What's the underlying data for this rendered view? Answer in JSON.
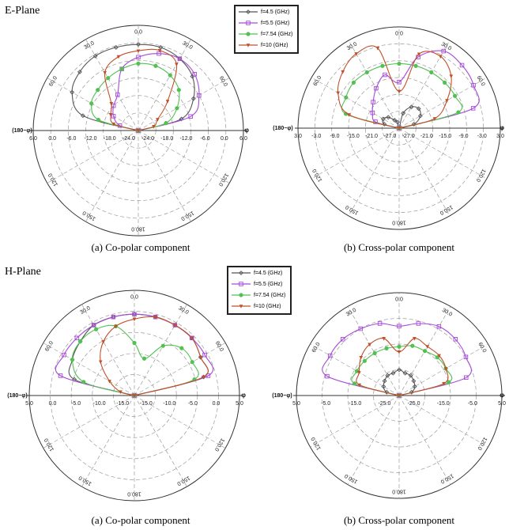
{
  "figure": {
    "e_plane_label": "E-Plane",
    "h_plane_label": "H-Plane",
    "captions": [
      "(a) Co-polar component",
      "(b) Cross-polar component",
      "(a) Co-polar component",
      "(b) Cross-polar component"
    ],
    "side_label_left": "(180−φ)",
    "side_label_right": "φ"
  },
  "legend": {
    "entries": [
      {
        "label": "f=4.5",
        "unit": "(GHz)",
        "color": "#555555",
        "marker": "diamond"
      },
      {
        "label": "f=5.5",
        "unit": "(GHz)",
        "color": "#a64ad8",
        "marker": "square"
      },
      {
        "label": "f=7.54",
        "unit": "(GHz)",
        "color": "#52c152",
        "marker": "circle"
      },
      {
        "label": "f=10",
        "unit": "(GHz)",
        "color": "#c0502a",
        "marker": "triangle"
      }
    ]
  },
  "chart_data": [
    {
      "type": "polar",
      "plane": "E-Plane",
      "component": "(a) Co-polar component",
      "r_min_db": -27,
      "r_max_db": 6,
      "r_step": 6,
      "radial_tick_labels": [
        "6.0",
        "0.0",
        "-6.0",
        "-12.0",
        "-18.0",
        "-24.0",
        "-24.0",
        "-18.0",
        "-12.0",
        "-6.0",
        "0.0",
        "6.0"
      ],
      "angle_labels": [
        "0.0",
        "30.0",
        "60.0",
        "120.0",
        "150.0",
        "180.0",
        "150.0",
        "120.0",
        "60.0",
        "30.0"
      ],
      "series": [
        {
          "name": "f=4.5",
          "angles": [
            -90,
            -75,
            -60,
            -45,
            -30,
            -15,
            0,
            15,
            30,
            45,
            60,
            75,
            90
          ],
          "values": [
            -27,
            -9,
            -3,
            -1,
            0,
            0,
            0,
            0,
            -1,
            -3,
            -7,
            -13,
            -27
          ]
        },
        {
          "name": "f=5.5",
          "angles": [
            -90,
            -75,
            -60,
            -45,
            -30,
            -15,
            0,
            15,
            30,
            45,
            60,
            75,
            90
          ],
          "values": [
            -27,
            -21,
            -18,
            -16,
            -14,
            -7,
            -4,
            -2,
            -1,
            -2,
            -5,
            -10,
            -27
          ]
        },
        {
          "name": "f=7.54",
          "angles": [
            -90,
            -75,
            -60,
            -45,
            -30,
            -15,
            0,
            15,
            30,
            45,
            60,
            75,
            90
          ],
          "values": [
            -27,
            -14,
            -10,
            -9,
            -8,
            -7,
            -6,
            -6,
            -7,
            -9,
            -13,
            -18,
            -27
          ]
        },
        {
          "name": "f=10",
          "angles": [
            -90,
            -75,
            -60,
            -45,
            -30,
            -15,
            0,
            15,
            30,
            45,
            60,
            75,
            90
          ],
          "values": [
            -27,
            -19,
            -17,
            -15,
            -6,
            -3,
            -2,
            -1,
            -3,
            -14,
            -20,
            -22,
            -27
          ]
        }
      ]
    },
    {
      "type": "polar",
      "plane": "E-Plane",
      "component": "(b) Cross-polar component",
      "r_min_db": -30,
      "r_max_db": 3,
      "r_step": 6,
      "radial_tick_labels": [
        "3.0",
        "-3.0",
        "-9.0",
        "-15.0",
        "-21.0",
        "-27.0",
        "-27.0",
        "-21.0",
        "-15.0",
        "-9.0",
        "-3.0",
        "3.0"
      ],
      "angle_labels": [
        "0.0",
        "30.0",
        "60.0",
        "120.0",
        "150.0",
        "180.0",
        "150.0",
        "120.0",
        "60.0",
        "30.0"
      ],
      "series": [
        {
          "name": "f=4.5",
          "angles": [
            -90,
            -75,
            -60,
            -45,
            -30,
            -15,
            0,
            15,
            30,
            45,
            60,
            75,
            90
          ],
          "values": [
            -30,
            -25,
            -24,
            -25,
            -27,
            -28,
            -30,
            -25,
            -22,
            -21,
            -22,
            -25,
            -30
          ]
        },
        {
          "name": "f=5.5",
          "angles": [
            -90,
            -75,
            -60,
            -45,
            -30,
            -15,
            0,
            15,
            30,
            45,
            60,
            75,
            90
          ],
          "values": [
            -30,
            -22,
            -20,
            -18,
            -15,
            -12,
            -15,
            -6,
            -1,
            -1,
            -2,
            -5,
            -30
          ]
        },
        {
          "name": "f=7.54",
          "angles": [
            -90,
            -75,
            -60,
            -45,
            -30,
            -15,
            0,
            15,
            30,
            45,
            60,
            75,
            90
          ],
          "values": [
            -30,
            -12,
            -10,
            -9,
            -9,
            -9,
            -9,
            -9,
            -9,
            -9,
            -9,
            -10,
            -30
          ]
        },
        {
          "name": "f=10",
          "angles": [
            -90,
            -75,
            -60,
            -45,
            -30,
            -15,
            0,
            15,
            30,
            45,
            60,
            75,
            90
          ],
          "values": [
            -30,
            -13,
            -7,
            -4,
            -2,
            -3,
            -18,
            -5,
            -3,
            -6,
            -12,
            -18,
            -30
          ]
        }
      ]
    },
    {
      "type": "polar",
      "plane": "H-Plane",
      "component": "(a) Co-polar component",
      "r_min_db": -17,
      "r_max_db": 5,
      "r_step": 5,
      "radial_tick_labels": [
        "5.0",
        "0.0",
        "-5.0",
        "-10.0",
        "-15.0",
        "-15.0",
        "-10.0",
        "-5.0",
        "0.0",
        "5.0"
      ],
      "angle_labels": [
        "0.0",
        "30.0",
        "60.0",
        "120.0",
        "150.0",
        "180.0",
        "150.0",
        "120.0",
        "60.0",
        "30.0"
      ],
      "series": [
        {
          "name": "f=4.5",
          "angles": [
            -90,
            -75,
            -60,
            -45,
            -30,
            -15,
            0,
            15,
            30,
            45,
            60,
            75,
            90
          ],
          "values": [
            -17,
            -4,
            -2,
            -1,
            0,
            0,
            0,
            0,
            0,
            0,
            -1,
            -2,
            -17
          ]
        },
        {
          "name": "f=5.5",
          "angles": [
            -90,
            -75,
            -60,
            -45,
            -30,
            -15,
            0,
            15,
            30,
            45,
            60,
            75,
            90
          ],
          "values": [
            -17,
            -1,
            0,
            0,
            0,
            0,
            0,
            0,
            0,
            0,
            0,
            -1,
            -17
          ]
        },
        {
          "name": "f=7.54",
          "angles": [
            -90,
            -75,
            -60,
            -45,
            -30,
            -15,
            0,
            15,
            30,
            45,
            60,
            75,
            90
          ],
          "values": [
            -17,
            -6,
            -2,
            -1,
            -1,
            -2,
            -6,
            -9,
            -5,
            -3,
            -3,
            -4,
            -17
          ]
        },
        {
          "name": "f=10",
          "angles": [
            -90,
            -75,
            -60,
            -45,
            -30,
            -15,
            0,
            15,
            30,
            45,
            60,
            75,
            90
          ],
          "values": [
            -17,
            -14,
            -11,
            -7,
            -4,
            -2,
            -1,
            0,
            0,
            0,
            -1,
            -2,
            -17
          ]
        }
      ]
    },
    {
      "type": "polar",
      "plane": "H-Plane",
      "component": "(b) Cross-polar component",
      "r_min_db": -35,
      "r_max_db": 5,
      "r_step": 10,
      "radial_tick_labels": [
        "5.0",
        "-5.0",
        "-15.0",
        "-25.0",
        "-25.0",
        "-15.0",
        "-5.0",
        "5.0"
      ],
      "angle_labels": [
        "0.0",
        "30.0",
        "60.0",
        "120.0",
        "150.0",
        "180.0",
        "150.0",
        "120.0",
        "60.0",
        "30.0"
      ],
      "series": [
        {
          "name": "f=4.5",
          "angles": [
            -90,
            -75,
            -60,
            -45,
            -30,
            -15,
            0,
            15,
            30,
            45,
            60,
            75,
            90
          ],
          "values": [
            -35,
            -30,
            -28,
            -27,
            -26,
            -26,
            -25,
            -26,
            -26,
            -27,
            -28,
            -30,
            -35
          ]
        },
        {
          "name": "f=5.5",
          "angles": [
            -90,
            -75,
            -60,
            -45,
            -30,
            -15,
            0,
            15,
            30,
            45,
            60,
            75,
            90
          ],
          "values": [
            -35,
            -6,
            -4,
            -4,
            -5,
            -6,
            -8,
            -6,
            -4,
            -4,
            -5,
            -8,
            -35
          ]
        },
        {
          "name": "f=7.54",
          "angles": [
            -90,
            -75,
            -60,
            -45,
            -30,
            -15,
            0,
            15,
            30,
            45,
            60,
            75,
            90
          ],
          "values": [
            -35,
            -17,
            -16,
            -16,
            -16,
            -16,
            -16,
            -15,
            -15,
            -14,
            -14,
            -15,
            -35
          ]
        },
        {
          "name": "f=10",
          "angles": [
            -90,
            -75,
            -60,
            -45,
            -30,
            -15,
            0,
            15,
            30,
            45,
            60,
            75,
            90
          ],
          "values": [
            -35,
            -19,
            -17,
            -14,
            -12,
            -12,
            -18,
            -12,
            -13,
            -13,
            -14,
            -17,
            -35
          ]
        }
      ]
    }
  ]
}
